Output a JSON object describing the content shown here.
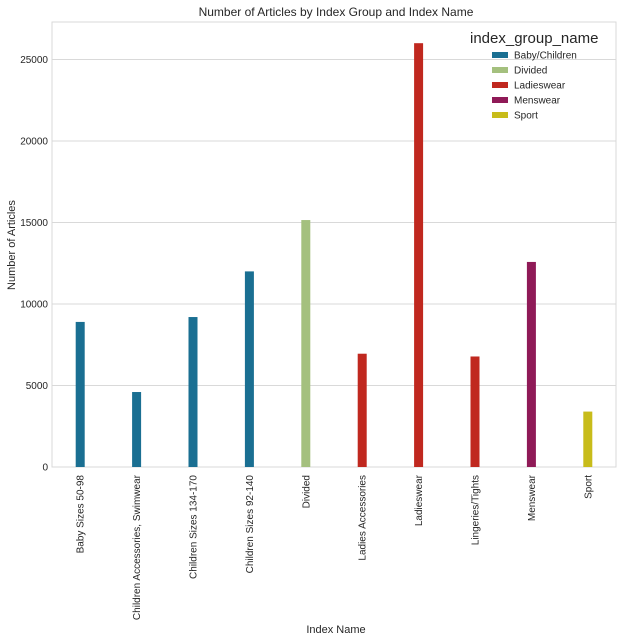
{
  "chart_data": {
    "type": "bar",
    "title": "Number of Articles by Index Group and Index Name",
    "xlabel": "Index Name",
    "ylabel": "Number of Articles",
    "ylim": [
      0,
      27300
    ],
    "yticks": [
      0,
      5000,
      10000,
      15000,
      20000,
      25000
    ],
    "grid": true,
    "legend_placement": "top-right",
    "categories": [
      "Baby Sizes 50-98",
      "Children Accessories, Swimwear",
      "Children Sizes 134-170",
      "Children Sizes 92-140",
      "Divided",
      "Ladies Accessories",
      "Ladieswear",
      "Lingeries/Tights",
      "Menswear",
      "Sport"
    ],
    "legend_title": "index_group_name",
    "series": [
      {
        "name": "Baby/Children",
        "color": "#1a6f92",
        "values": [
          8900,
          4600,
          9200,
          12000,
          null,
          null,
          null,
          null,
          null,
          null
        ]
      },
      {
        "name": "Divided",
        "color": "#a4c07e",
        "values": [
          null,
          null,
          null,
          null,
          15150,
          null,
          null,
          null,
          null,
          null
        ]
      },
      {
        "name": "Ladieswear",
        "color": "#c0281f",
        "values": [
          null,
          null,
          null,
          null,
          null,
          6950,
          26000,
          6780,
          null,
          null
        ]
      },
      {
        "name": "Menswear",
        "color": "#8f1a57",
        "values": [
          null,
          null,
          null,
          null,
          null,
          null,
          null,
          null,
          12580,
          null
        ]
      },
      {
        "name": "Sport",
        "color": "#c8bc1a",
        "values": [
          null,
          null,
          null,
          null,
          null,
          null,
          null,
          null,
          null,
          3400
        ]
      }
    ]
  }
}
